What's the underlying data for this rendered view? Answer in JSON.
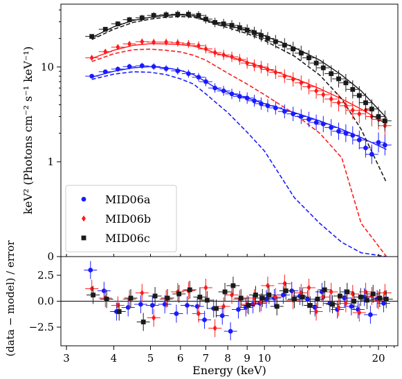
{
  "chart_data": [
    {
      "type": "scatter",
      "panel": "spectrum",
      "xscale": "log",
      "yscale": "symlog",
      "ylabel": "keV² (Photons cm⁻² s⁻¹ keV⁻¹)",
      "xlim": [
        2.9,
        22.5
      ],
      "yticks": [
        {
          "value": 0,
          "label": "0"
        },
        {
          "value": 1,
          "label": "1"
        },
        {
          "value": 10,
          "label": "10"
        }
      ],
      "legend_position": "lower-left",
      "series": [
        {
          "name": "MID06a",
          "color": "#1a1aff",
          "marker": "circle",
          "x": [
            3.5,
            3.8,
            4.1,
            4.4,
            4.75,
            5.1,
            5.5,
            5.9,
            6.3,
            6.7,
            7.0,
            7.4,
            7.8,
            8.2,
            8.6,
            9.0,
            9.4,
            9.8,
            10.2,
            10.7,
            11.3,
            11.9,
            12.5,
            13.1,
            13.7,
            14.3,
            15.0,
            15.7,
            16.4,
            17.1,
            17.8,
            18.5,
            19.2,
            20.0,
            20.8
          ],
          "y": [
            8.0,
            8.9,
            9.5,
            10.1,
            10.3,
            10.1,
            9.6,
            9.1,
            8.5,
            7.8,
            7.0,
            6.0,
            5.6,
            5.2,
            4.9,
            4.7,
            4.4,
            4.1,
            3.9,
            3.7,
            3.4,
            3.2,
            3.0,
            2.8,
            2.6,
            2.5,
            2.3,
            2.1,
            2.0,
            1.9,
            1.7,
            1.4,
            1.2,
            1.6,
            1.5
          ],
          "model_x": [
            3.5,
            4.0,
            4.5,
            5.0,
            5.5,
            6.0,
            6.5,
            7.0,
            7.5,
            8.0,
            9.0,
            10.0,
            12.0,
            14.0,
            16.0,
            18.0,
            21.0
          ],
          "model_y": [
            7.8,
            9.0,
            9.8,
            10.1,
            9.8,
            9.2,
            8.3,
            7.0,
            5.9,
            5.4,
            4.7,
            4.1,
            3.3,
            2.7,
            2.2,
            1.8,
            1.35
          ],
          "comp_y": [
            7.4,
            8.4,
            8.9,
            8.8,
            8.3,
            7.5,
            6.6,
            5.2,
            4.1,
            3.3,
            2.05,
            1.3,
            0.62,
            0.35,
            0.15,
            0.04,
            0.0
          ]
        },
        {
          "name": "MID06b",
          "color": "#ff1a1a",
          "marker": "diamond",
          "x": [
            3.5,
            3.8,
            4.1,
            4.4,
            4.75,
            5.1,
            5.5,
            5.9,
            6.3,
            6.7,
            7.0,
            7.4,
            7.8,
            8.2,
            8.6,
            9.0,
            9.4,
            9.8,
            10.2,
            10.7,
            11.3,
            11.9,
            12.5,
            13.1,
            13.7,
            14.3,
            15.0,
            15.7,
            16.4,
            17.1,
            17.8,
            18.5,
            19.2,
            20.0,
            20.8
          ],
          "y": [
            12.5,
            14.5,
            16.2,
            17.5,
            18.5,
            18.3,
            18.3,
            18.0,
            17.5,
            16.8,
            15.5,
            14.2,
            13.4,
            12.8,
            12.0,
            11.0,
            10.4,
            10.0,
            9.4,
            8.8,
            8.0,
            7.4,
            6.8,
            6.2,
            5.6,
            5.1,
            4.6,
            4.2,
            3.9,
            3.5,
            3.2,
            3.5,
            3.0,
            2.8,
            2.4
          ],
          "model_x": [
            3.5,
            4.0,
            4.5,
            5.0,
            5.5,
            6.0,
            6.5,
            7.0,
            7.5,
            8.0,
            9.0,
            10.0,
            12.0,
            14.0,
            16.0,
            18.0,
            21.0
          ],
          "model_y": [
            12.3,
            15.0,
            16.9,
            17.6,
            17.5,
            17.2,
            16.6,
            15.3,
            13.8,
            13.0,
            11.3,
            9.8,
            7.6,
            5.9,
            4.6,
            3.6,
            2.5
          ],
          "comp_y": [
            11.4,
            13.8,
            15.2,
            15.4,
            15.0,
            14.4,
            13.3,
            11.8,
            10.0,
            8.6,
            6.6,
            5.1,
            3.2,
            2.0,
            1.1,
            0.35,
            0.0
          ]
        },
        {
          "name": "MID06c",
          "color": "#1a1a1a",
          "marker": "square",
          "x": [
            3.5,
            3.8,
            4.1,
            4.4,
            4.75,
            5.1,
            5.5,
            5.9,
            6.3,
            6.7,
            7.0,
            7.4,
            7.8,
            8.2,
            8.6,
            9.0,
            9.4,
            9.8,
            10.2,
            10.7,
            11.3,
            11.9,
            12.5,
            13.1,
            13.7,
            14.3,
            15.0,
            15.7,
            16.4,
            17.1,
            17.8,
            18.5,
            19.2,
            20.0,
            20.8
          ],
          "y": [
            21.0,
            25.0,
            28.5,
            31.5,
            33.0,
            35.0,
            35.5,
            36.0,
            36.0,
            35.0,
            32.0,
            29.5,
            28.5,
            27.5,
            26.0,
            24.5,
            23.0,
            21.5,
            20.0,
            18.5,
            17.0,
            15.5,
            14.0,
            12.5,
            11.0,
            9.8,
            8.5,
            7.5,
            6.8,
            5.8,
            5.0,
            4.2,
            3.6,
            3.0,
            2.7
          ],
          "model_x": [
            3.5,
            4.0,
            4.5,
            5.0,
            5.5,
            6.0,
            6.5,
            7.0,
            7.5,
            8.0,
            9.0,
            10.0,
            12.0,
            14.0,
            16.0,
            18.0,
            21.0
          ],
          "model_y": [
            20.5,
            26.5,
            31.0,
            33.5,
            35.0,
            35.5,
            34.5,
            31.5,
            29.0,
            27.5,
            24.5,
            21.3,
            16.0,
            11.8,
            8.2,
            5.6,
            2.9
          ],
          "comp_y": [
            19.5,
            25.0,
            29.5,
            32.0,
            33.5,
            34.0,
            33.5,
            31.0,
            28.0,
            26.0,
            22.5,
            19.0,
            13.0,
            8.2,
            4.6,
            2.2,
            0.78
          ]
        }
      ]
    },
    {
      "type": "scatter",
      "panel": "residuals",
      "xscale": "log",
      "xlabel": "Energy (keV)",
      "ylabel": "(data − model) / error",
      "xlim": [
        2.9,
        22.5
      ],
      "ylim": [
        -4.3,
        4.3
      ],
      "xticks": [
        3,
        4,
        5,
        6,
        7,
        8,
        9,
        10,
        20
      ],
      "yticks": [
        "2.5",
        "0.0",
        "−2.5"
      ],
      "series": [
        {
          "name": "MID06a",
          "color": "#1a1aff",
          "x": [
            3.5,
            3.8,
            4.1,
            4.4,
            4.75,
            5.1,
            5.5,
            5.9,
            6.3,
            6.7,
            7.0,
            7.4,
            7.8,
            8.2,
            8.6,
            9.0,
            9.4,
            9.8,
            10.2,
            10.7,
            11.3,
            11.9,
            12.5,
            13.1,
            13.7,
            14.3,
            15.0,
            15.7,
            16.4,
            17.1,
            17.8,
            18.5,
            19.2,
            20.0,
            20.8
          ],
          "y": [
            3.0,
            1.0,
            -1.0,
            -0.6,
            -0.3,
            -0.4,
            -0.3,
            -1.2,
            -0.4,
            -0.5,
            -1.8,
            -0.7,
            -1.4,
            -2.9,
            -0.8,
            -0.6,
            -0.3,
            -0.2,
            0.2,
            0.3,
            0.6,
            1.0,
            0.5,
            0.2,
            -0.6,
            0.9,
            -0.2,
            -0.8,
            0.3,
            -0.5,
            -0.8,
            0.4,
            -1.3,
            0.2,
            -0.2
          ]
        },
        {
          "name": "MID06b",
          "color": "#ff1a1a",
          "x": [
            3.5,
            3.8,
            4.1,
            4.4,
            4.75,
            5.1,
            5.5,
            5.9,
            6.3,
            6.7,
            7.0,
            7.4,
            7.8,
            8.2,
            8.6,
            9.0,
            9.4,
            9.8,
            10.2,
            10.7,
            11.3,
            11.9,
            12.5,
            13.1,
            13.7,
            14.3,
            15.0,
            15.7,
            16.4,
            17.1,
            17.8,
            18.5,
            19.2,
            20.0,
            20.8
          ],
          "y": [
            1.2,
            0.3,
            -0.4,
            0.2,
            0.8,
            -1.6,
            0.2,
            0.9,
            1.0,
            -1.2,
            1.3,
            -2.6,
            -0.5,
            0.6,
            0.2,
            -0.3,
            0.3,
            -0.1,
            1.5,
            0.4,
            1.7,
            0.1,
            0.8,
            1.3,
            -1.0,
            0.4,
            0.9,
            -0.6,
            -0.2,
            0.7,
            -1.1,
            0.9,
            0.5,
            0.1,
            0.8
          ]
        },
        {
          "name": "MID06c",
          "color": "#1a1a1a",
          "x": [
            3.5,
            3.8,
            4.1,
            4.4,
            4.75,
            5.1,
            5.5,
            5.9,
            6.3,
            6.7,
            7.0,
            7.4,
            7.8,
            8.2,
            8.6,
            9.0,
            9.4,
            9.8,
            10.2,
            10.7,
            11.3,
            11.9,
            12.5,
            13.1,
            13.7,
            14.3,
            15.0,
            15.7,
            16.4,
            17.1,
            17.8,
            18.5,
            19.2,
            20.0,
            20.8
          ],
          "y": [
            0.6,
            0.2,
            -1.0,
            0.3,
            -2.0,
            0.5,
            0.3,
            0.7,
            1.1,
            0.4,
            0.1,
            -0.7,
            0.9,
            1.5,
            0.3,
            -0.4,
            0.6,
            0.3,
            0.6,
            -0.5,
            1.0,
            0.2,
            0.4,
            -0.4,
            0.2,
            1.1,
            -0.3,
            0.5,
            0.9,
            0.0,
            0.4,
            0.1,
            0.7,
            0.3,
            0.2
          ]
        }
      ]
    }
  ]
}
